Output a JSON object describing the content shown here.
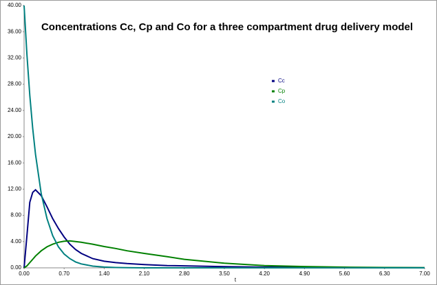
{
  "chart_data": {
    "type": "line",
    "title": "Concentrations Cc, Cp and Co for a three compartment drug delivery model",
    "x_label": "t",
    "x": [
      0,
      0.05,
      0.1,
      0.15,
      0.2,
      0.3,
      0.4,
      0.5,
      0.6,
      0.7,
      0.8,
      0.9,
      1.0,
      1.2,
      1.4,
      1.6,
      1.8,
      2.1,
      2.5,
      2.8,
      3.5,
      4.2,
      4.9,
      5.6,
      6.3,
      7.0
    ],
    "series": [
      {
        "name": "Cc",
        "color": "#000080",
        "values": [
          0,
          5,
          10,
          11.5,
          11.9,
          11,
          9.3,
          7.5,
          6,
          4.7,
          3.6,
          2.8,
          2.2,
          1.4,
          1.0,
          0.8,
          0.65,
          0.5,
          0.35,
          0.3,
          0.18,
          0.1,
          0.06,
          0.04,
          0.02,
          0.01
        ]
      },
      {
        "name": "Cp",
        "color": "#008000",
        "values": [
          0,
          0.3,
          0.8,
          1.3,
          1.8,
          2.6,
          3.2,
          3.6,
          3.9,
          4.05,
          4.1,
          4.0,
          3.9,
          3.6,
          3.25,
          2.95,
          2.6,
          2.2,
          1.7,
          1.3,
          0.7,
          0.35,
          0.2,
          0.1,
          0.05,
          0.02
        ]
      },
      {
        "name": "Co",
        "color": "#008080",
        "values": [
          40,
          32.4,
          26.3,
          21.3,
          17.3,
          11.3,
          7.5,
          4.9,
          3.2,
          2.1,
          1.4,
          0.9,
          0.6,
          0.26,
          0.11,
          0.05,
          0.02,
          0,
          0,
          0,
          0,
          0,
          0,
          0,
          0,
          0
        ]
      }
    ],
    "xlim": [
      0,
      7
    ],
    "xticks": [
      {
        "value": 0,
        "label": "0.00"
      },
      {
        "value": 0.7,
        "label": "0.70"
      },
      {
        "value": 1.4,
        "label": "1.40"
      },
      {
        "value": 2.1,
        "label": "2.10"
      },
      {
        "value": 2.8,
        "label": "2.80"
      },
      {
        "value": 3.5,
        "label": "3.50"
      },
      {
        "value": 4.2,
        "label": "4.20"
      },
      {
        "value": 4.9,
        "label": "4.90"
      },
      {
        "value": 5.6,
        "label": "5.60"
      },
      {
        "value": 6.3,
        "label": "6.30"
      },
      {
        "value": 7,
        "label": "7.00"
      }
    ],
    "ylim": [
      0,
      40
    ],
    "yticks": [
      {
        "value": 0,
        "label": "0.00"
      },
      {
        "value": 4,
        "label": "4.00"
      },
      {
        "value": 8,
        "label": "8.00"
      },
      {
        "value": 12,
        "label": "12.00"
      },
      {
        "value": 16,
        "label": "16.00"
      },
      {
        "value": 20,
        "label": "20.00"
      },
      {
        "value": 24,
        "label": "24.00"
      },
      {
        "value": 28,
        "label": "28.00"
      },
      {
        "value": 32,
        "label": "32.00"
      },
      {
        "value": 36,
        "label": "36.00"
      },
      {
        "value": 40,
        "label": "40.00"
      }
    ]
  }
}
